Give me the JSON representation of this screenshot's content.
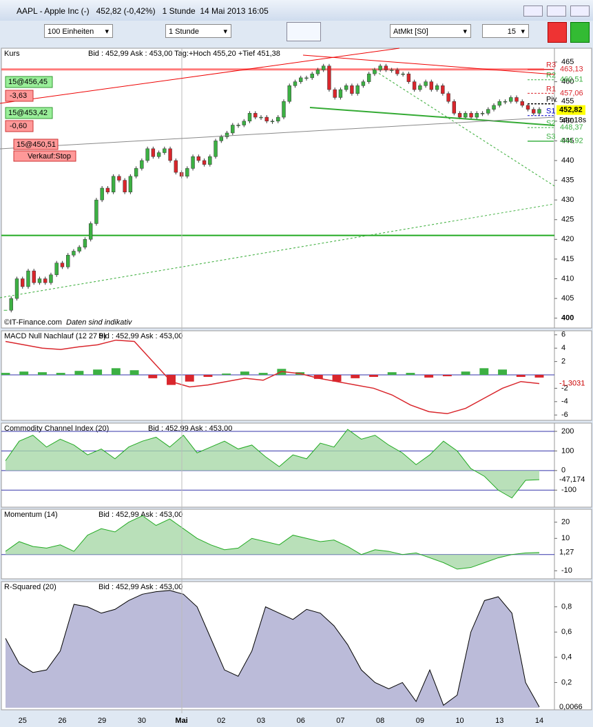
{
  "window": {
    "title": "AAPL - Apple Inc (-)   452,82 (-0,42%)   1 Stunde  14 Mai 2013 16:05"
  },
  "toolbar": {
    "units": "100 Einheiten",
    "interval": "1 Stunde",
    "order_type": "AtMkt [S0]",
    "quantity": "15"
  },
  "orders": [
    {
      "label": "15@456,45",
      "pnl": "-3,63"
    },
    {
      "label": "15@453,42",
      "pnl": "-0,60"
    },
    {
      "label": "15@450,51",
      "stop": "Verkauf:Stop"
    }
  ],
  "footer": {
    "copyright": "©IT-Finance.com",
    "note": "Daten sind indikativ"
  },
  "x_labels": [
    "25",
    "26",
    "29",
    "30",
    "Mai",
    "02",
    "03",
    "06",
    "07",
    "08",
    "09",
    "10",
    "13",
    "14"
  ],
  "chart_data": [
    {
      "type": "candlestick",
      "title": "Kurs",
      "info": "Bid : 452,99 Ask : 453,00 Tag:+Hoch 455,20 +Tief 451,38",
      "up_color": "#3cb043",
      "down_color": "#d9262c",
      "values": [
        402,
        405,
        410,
        408,
        412,
        409,
        410,
        409,
        411,
        414,
        413,
        416,
        417,
        418,
        420,
        424,
        430,
        433,
        432,
        436,
        435,
        432,
        436,
        438,
        440,
        443,
        441,
        442,
        443,
        440,
        437,
        436,
        438,
        441,
        440,
        439,
        441,
        445,
        446,
        447,
        449,
        449,
        450,
        452,
        451,
        451,
        450,
        450,
        451,
        455,
        459,
        460,
        461,
        461,
        462,
        463,
        464,
        458,
        456,
        458,
        459,
        457,
        459,
        460,
        462,
        463,
        464,
        463,
        463,
        462,
        462,
        460,
        458,
        459,
        460,
        458,
        459,
        457,
        455,
        452,
        451,
        452,
        451,
        452,
        452,
        453,
        454,
        455,
        455,
        456,
        455,
        454,
        453,
        452,
        453
      ],
      "ylim": [
        397.5,
        468.5
      ],
      "yticks": [
        400,
        405,
        410,
        415,
        420,
        425,
        430,
        435,
        440,
        445,
        450,
        455,
        460,
        465
      ],
      "levels": [
        {
          "name": "R3",
          "value": 463.13,
          "label": "463,13",
          "color": "#d9262c"
        },
        {
          "name": "R2",
          "value": 460.51,
          "label": "460,51",
          "color": "#3cb043"
        },
        {
          "name": "R1",
          "value": 457.06,
          "label": "457,06",
          "color": "#d9262c"
        },
        {
          "name": "Piv",
          "value": 454.4,
          "color": "#000000"
        },
        {
          "name": "S1",
          "value": 451.4,
          "color": "#0000cc"
        },
        {
          "name": "S2",
          "value": 448.37,
          "label": "448,37",
          "color": "#3cb043"
        },
        {
          "name": "S3",
          "value": 444.92,
          "label": "444,92",
          "color": "#3cb043"
        }
      ],
      "last": {
        "value": 452.82,
        "label": "452,82",
        "timer": "54m18s"
      },
      "support_line": 421
    },
    {
      "type": "macd",
      "title": "MACD Null Nachlauf (12 27 9)",
      "info": "Bid : 452,99 Ask : 453,00",
      "values": [
        5,
        4.5,
        4,
        3.8,
        4.2,
        4.5,
        5.2,
        5,
        2,
        -1,
        -1.8,
        -1.5,
        -1,
        -0.5,
        -0.8,
        0.5,
        0.2,
        -0.5,
        -1,
        -1.5,
        -2,
        -3,
        -4.5,
        -5.5,
        -5.8,
        -5,
        -3.5,
        -2,
        -1,
        -1.3
      ],
      "histogram": [
        0.3,
        0.5,
        0.4,
        0.3,
        0.6,
        0.8,
        1,
        0.7,
        -0.5,
        -1.5,
        -1,
        -0.3,
        0.2,
        0.5,
        0.3,
        0.9,
        0.4,
        -0.6,
        -1,
        -0.5,
        -0.3,
        0.4,
        0.3,
        -0.4,
        -0.2,
        0.5,
        1,
        0.8,
        -0.3,
        -0.4
      ],
      "ylim": [
        -6.8,
        6.6
      ],
      "yticks": [
        6,
        4,
        2,
        -2,
        -4,
        -6
      ],
      "last": {
        "value": -1.3031,
        "label": "-1,3031"
      }
    },
    {
      "type": "cci",
      "title": "Commodity Channel Index (20)",
      "info": "Bid : 452,99 Ask : 453,00",
      "values": [
        50,
        150,
        180,
        120,
        160,
        130,
        80,
        110,
        60,
        120,
        150,
        170,
        120,
        180,
        90,
        120,
        150,
        110,
        130,
        70,
        20,
        80,
        60,
        140,
        120,
        210,
        160,
        180,
        130,
        90,
        30,
        80,
        150,
        100,
        10,
        -30,
        -100,
        -140,
        -50,
        -47
      ],
      "ylim": [
        -187,
        242
      ],
      "yticks": [
        200,
        100,
        0,
        -100
      ],
      "last": {
        "value": -47.174,
        "label": "-47,174"
      }
    },
    {
      "type": "momentum",
      "title": "Momentum (14)",
      "info": "Bid : 452,99 Ask : 453,00",
      "values": [
        2,
        8,
        5,
        4,
        6,
        2,
        12,
        16,
        14,
        20,
        24,
        18,
        22,
        16,
        10,
        6,
        3,
        4,
        10,
        8,
        6,
        12,
        10,
        8,
        9,
        5,
        0,
        3,
        2,
        0,
        1,
        -2,
        -5,
        -9,
        -8,
        -5,
        -2,
        0,
        1,
        1.27
      ],
      "ylim": [
        -15,
        28
      ],
      "yticks": [
        20,
        10,
        -10
      ],
      "last": {
        "value": 1.27,
        "label": "1,27"
      }
    },
    {
      "type": "area",
      "title": "R-Squared (20)",
      "info": "Bid : 452,99 Ask : 453,00",
      "values": [
        0.55,
        0.35,
        0.28,
        0.3,
        0.45,
        0.82,
        0.8,
        0.75,
        0.78,
        0.85,
        0.9,
        0.92,
        0.93,
        0.9,
        0.8,
        0.55,
        0.3,
        0.25,
        0.45,
        0.8,
        0.75,
        0.7,
        0.78,
        0.75,
        0.65,
        0.5,
        0.3,
        0.2,
        0.15,
        0.2,
        0.05,
        0.3,
        0.02,
        0.1,
        0.6,
        0.85,
        0.88,
        0.75,
        0.2,
        0.0066
      ],
      "ylim": [
        -0.016,
        1.0
      ],
      "yticks": [
        {
          "value": 0.8,
          "label": "0,8"
        },
        {
          "value": 0.6,
          "label": "0,6"
        },
        {
          "value": 0.4,
          "label": "0,4"
        },
        {
          "value": 0.2,
          "label": "0,2"
        }
      ],
      "last": {
        "value": 0.0066,
        "label": "0,0066"
      }
    }
  ]
}
